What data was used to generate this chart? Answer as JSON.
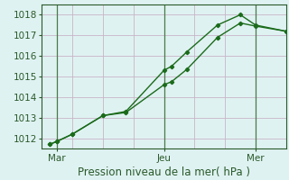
{
  "xlabel": "Pression niveau de la mer( hPa )",
  "background_color": "#dff2f2",
  "grid_color_h": "#c8b4c8",
  "grid_color_v": "#c8b4c8",
  "line_color": "#1a6b1a",
  "marker_color": "#1a6b1a",
  "ylim": [
    1011.5,
    1018.5
  ],
  "xlim": [
    0,
    16
  ],
  "xtick_labels": [
    "Mar",
    "Jeu",
    "Mer"
  ],
  "xtick_positions": [
    1,
    8,
    14
  ],
  "vline_positions": [
    1,
    8,
    14
  ],
  "series1_x": [
    0.5,
    1.0,
    2.0,
    4.0,
    5.5,
    8.0,
    8.5,
    9.5,
    11.5,
    13.0,
    14.0,
    16.0
  ],
  "series1_y": [
    1011.7,
    1011.85,
    1012.2,
    1013.1,
    1013.3,
    1015.3,
    1015.5,
    1016.2,
    1017.5,
    1018.0,
    1017.5,
    1017.2
  ],
  "series2_x": [
    0.5,
    1.0,
    2.0,
    4.0,
    5.5,
    8.0,
    8.5,
    9.5,
    11.5,
    13.0,
    14.0,
    16.0
  ],
  "series2_y": [
    1011.7,
    1011.85,
    1012.2,
    1013.1,
    1013.25,
    1014.6,
    1014.75,
    1015.35,
    1016.9,
    1017.6,
    1017.45,
    1017.2
  ],
  "ytick_values": [
    1012,
    1013,
    1014,
    1015,
    1016,
    1017,
    1018
  ],
  "total_x": 16,
  "xlabel_fontsize": 8.5,
  "tick_fontsize": 7.5
}
